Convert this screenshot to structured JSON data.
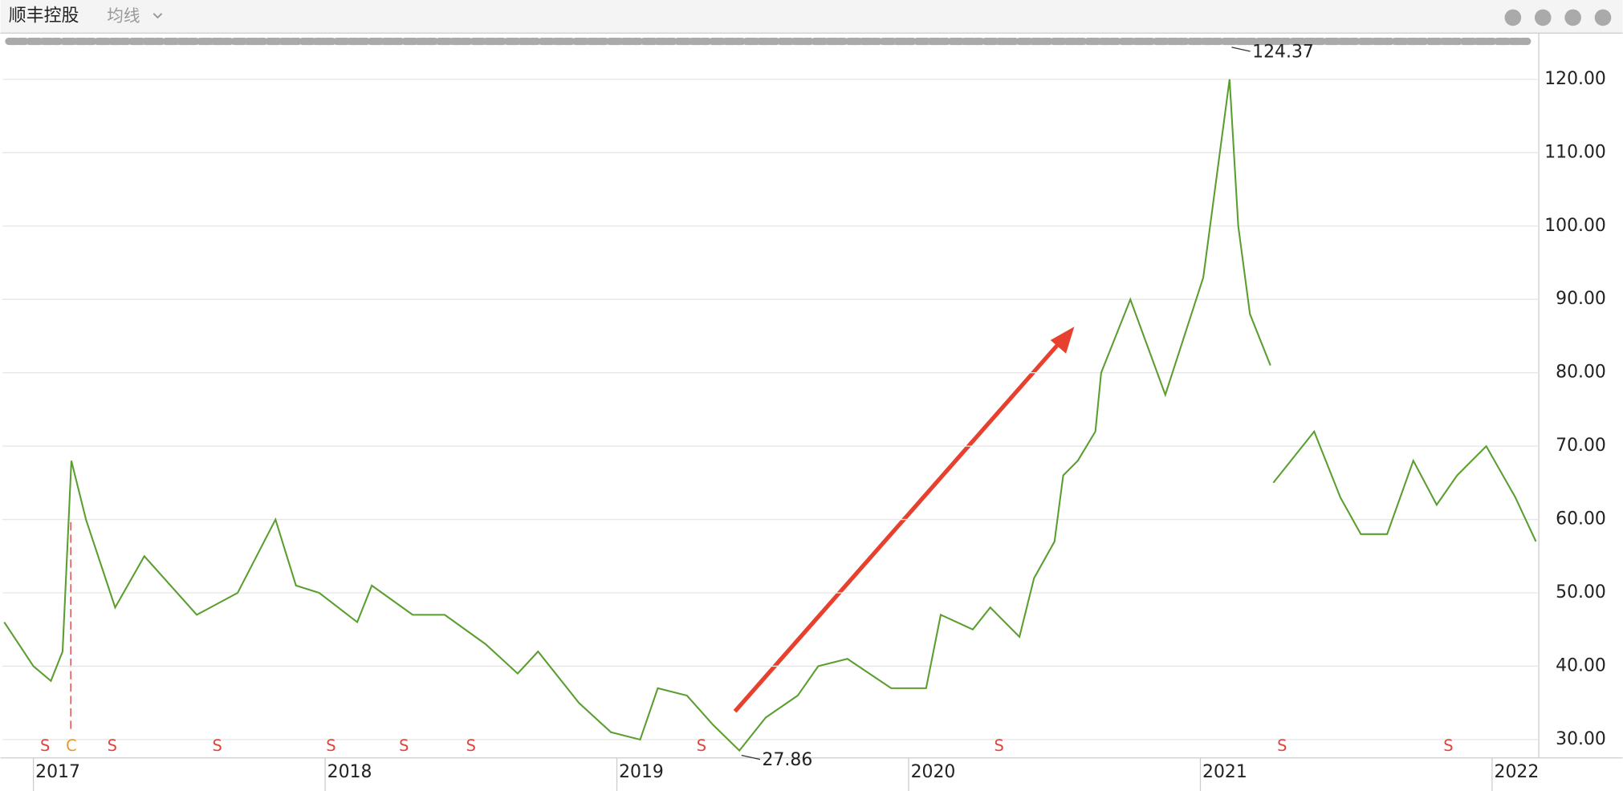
{
  "header": {
    "title": "顺丰控股",
    "indicator": "均线"
  },
  "chart_data": {
    "type": "line",
    "x": [
      2016.9,
      2016.95,
      2017.0,
      2017.06,
      2017.1,
      2017.13,
      2017.18,
      2017.28,
      2017.38,
      2017.56,
      2017.7,
      2017.83,
      2017.9,
      2017.98,
      2018.11,
      2018.16,
      2018.3,
      2018.41,
      2018.55,
      2018.66,
      2018.73,
      2018.87,
      2018.98,
      2019.08,
      2019.14,
      2019.24,
      2019.33,
      2019.42,
      2019.51,
      2019.62,
      2019.69,
      2019.79,
      2019.94,
      2020.06,
      2020.11,
      2020.22,
      2020.28,
      2020.38,
      2020.43,
      2020.5,
      2020.53,
      2020.58,
      2020.64,
      2020.66,
      2020.76,
      2020.88,
      2021.01,
      2021.1,
      2021.13,
      2021.17,
      2021.24,
      2021.245,
      2021.25,
      2021.39,
      2021.48,
      2021.55,
      2021.64,
      2021.73,
      2021.81,
      2021.88,
      2021.98,
      2022.08,
      2022.15
    ],
    "values": [
      46,
      43,
      40,
      38,
      42,
      68,
      60,
      48,
      55,
      47,
      50,
      60,
      51,
      50,
      46,
      51,
      47,
      47,
      43,
      39,
      42,
      35,
      31,
      30,
      37,
      36,
      32,
      28.5,
      33,
      36,
      40,
      41,
      37,
      37,
      47,
      45,
      48,
      44,
      52,
      57,
      66,
      68,
      72,
      80,
      90,
      77,
      93,
      120,
      100,
      88,
      81,
      null,
      65,
      72,
      63,
      58,
      58,
      68,
      62,
      66,
      70,
      63,
      57
    ],
    "color": "#5a9e2f",
    "xlim": [
      2016.894,
      2022.16
    ],
    "xticks": [
      2017,
      2018,
      2019,
      2020,
      2021,
      2022
    ],
    "ylim": [
      27.5,
      126.3
    ],
    "yticks": [
      {
        "value": 30,
        "label": "30.00"
      },
      {
        "value": 40,
        "label": "40.00"
      },
      {
        "value": 50,
        "label": "50.00"
      },
      {
        "value": 60,
        "label": "60.00"
      },
      {
        "value": 70,
        "label": "70.00"
      },
      {
        "value": 80,
        "label": "80.00"
      },
      {
        "value": 90,
        "label": "90.00"
      },
      {
        "value": 100,
        "label": "100.00"
      },
      {
        "value": 110,
        "label": "110.00"
      },
      {
        "value": 120,
        "label": "120.00"
      }
    ],
    "grid": true,
    "annotations": [
      {
        "x": 2021.1,
        "value": 124.37,
        "label": "124.37"
      },
      {
        "x": 2019.42,
        "value": 27.86,
        "label": "27.86"
      }
    ],
    "events": [
      {
        "x": 2017.04,
        "label": "S",
        "color": "#e0443a"
      },
      {
        "x": 2017.13,
        "label": "C",
        "color": "#e8962e"
      },
      {
        "x": 2017.27,
        "label": "S",
        "color": "#e0443a"
      },
      {
        "x": 2017.63,
        "label": "S",
        "color": "#e0443a"
      },
      {
        "x": 2018.02,
        "label": "S",
        "color": "#e0443a"
      },
      {
        "x": 2018.27,
        "label": "S",
        "color": "#e0443a"
      },
      {
        "x": 2018.5,
        "label": "S",
        "color": "#e0443a"
      },
      {
        "x": 2019.29,
        "label": "S",
        "color": "#e0443a"
      },
      {
        "x": 2020.31,
        "label": "S",
        "color": "#e0443a"
      },
      {
        "x": 2021.28,
        "label": "S",
        "color": "#e0443a"
      },
      {
        "x": 2021.85,
        "label": "S",
        "color": "#e0443a"
      }
    ]
  }
}
